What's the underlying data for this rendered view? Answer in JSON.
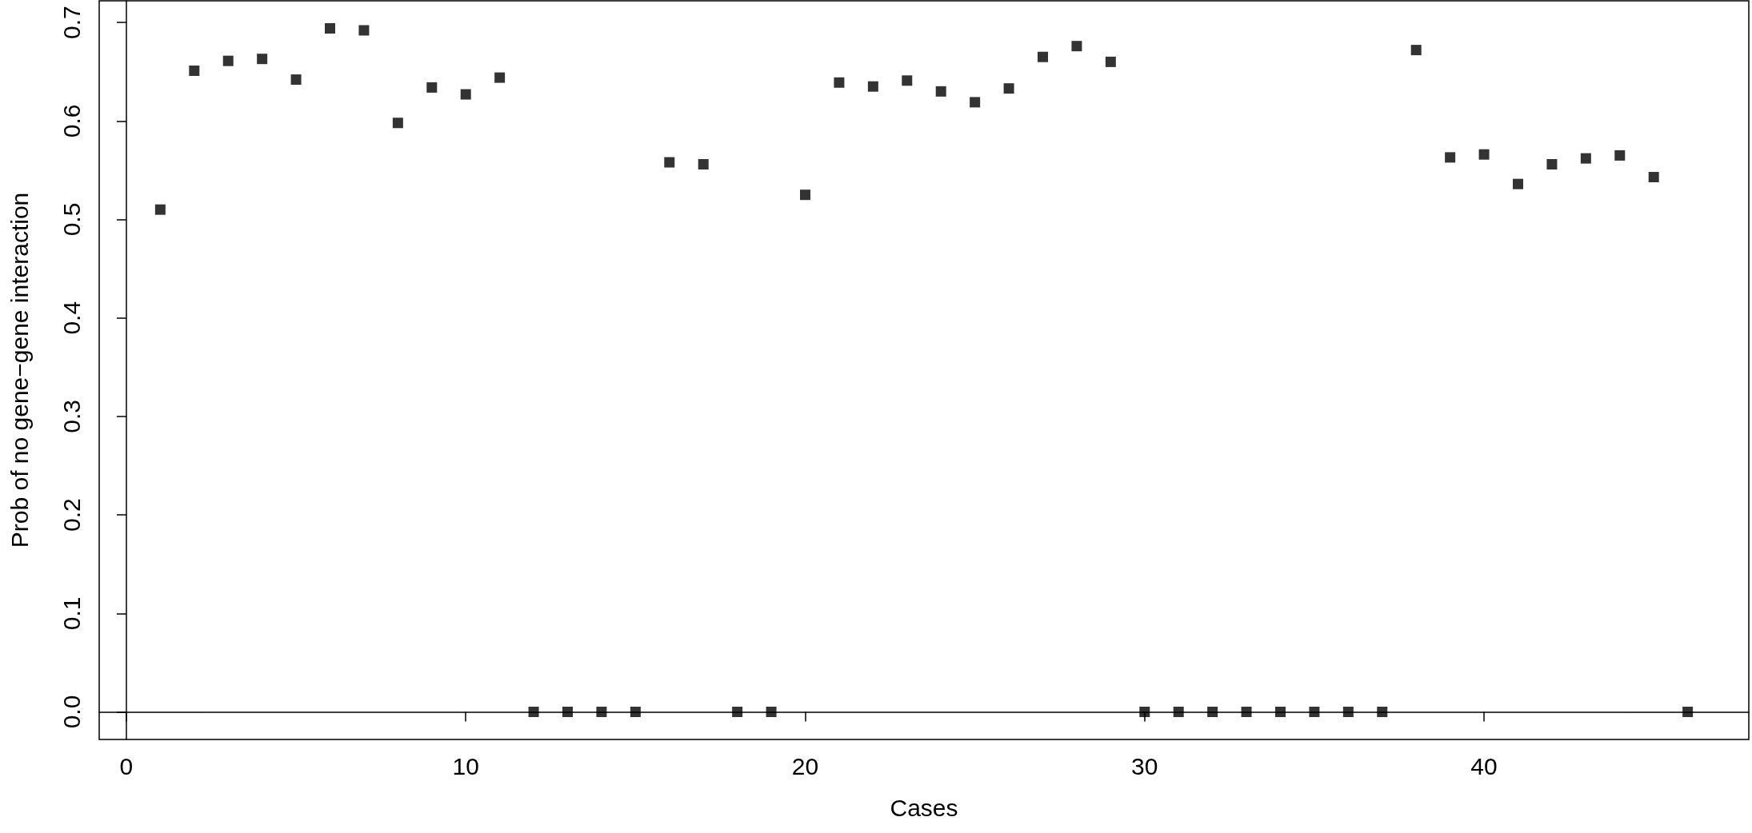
{
  "chart_data": {
    "type": "scatter",
    "xlabel": "Cases",
    "ylabel": "Prob of no gene−gene interaction",
    "x": [
      1,
      2,
      3,
      4,
      5,
      6,
      7,
      8,
      9,
      10,
      11,
      12,
      13,
      14,
      15,
      16,
      17,
      18,
      19,
      20,
      21,
      22,
      23,
      24,
      25,
      26,
      27,
      28,
      29,
      30,
      31,
      32,
      33,
      34,
      35,
      36,
      37,
      38,
      39,
      40,
      41,
      42,
      43,
      44,
      45,
      46
    ],
    "values": [
      0.51,
      0.651,
      0.661,
      0.663,
      0.642,
      0.694,
      0.692,
      0.598,
      0.634,
      0.627,
      0.644,
      0,
      0,
      0,
      0,
      0.558,
      0.556,
      0,
      0,
      0.525,
      0.639,
      0.635,
      0.641,
      0.63,
      0.619,
      0.633,
      0.665,
      0.676,
      0.66,
      0,
      0,
      0,
      0,
      0,
      0,
      0,
      0,
      0.672,
      0.563,
      0.566,
      0.536,
      0.556,
      0.562,
      0.565,
      0.543,
      0
    ],
    "color": "#000000",
    "marker": "square",
    "xlim": [
      -0.8,
      47.8
    ],
    "xticks": [
      0,
      10,
      20,
      30,
      40
    ],
    "ylim": [
      -0.028,
      0.722
    ],
    "yticks": [
      {
        "value": 0,
        "label": "0.0"
      },
      {
        "value": 0.1,
        "label": "0.1"
      },
      {
        "value": 0.2,
        "label": "0.2"
      },
      {
        "value": 0.3,
        "label": "0.3"
      },
      {
        "value": 0.4,
        "label": "0.4"
      },
      {
        "value": 0.5,
        "label": "0.5"
      },
      {
        "value": 0.6,
        "label": "0.6"
      },
      {
        "value": 0.7,
        "label": "0.7"
      }
    ]
  }
}
